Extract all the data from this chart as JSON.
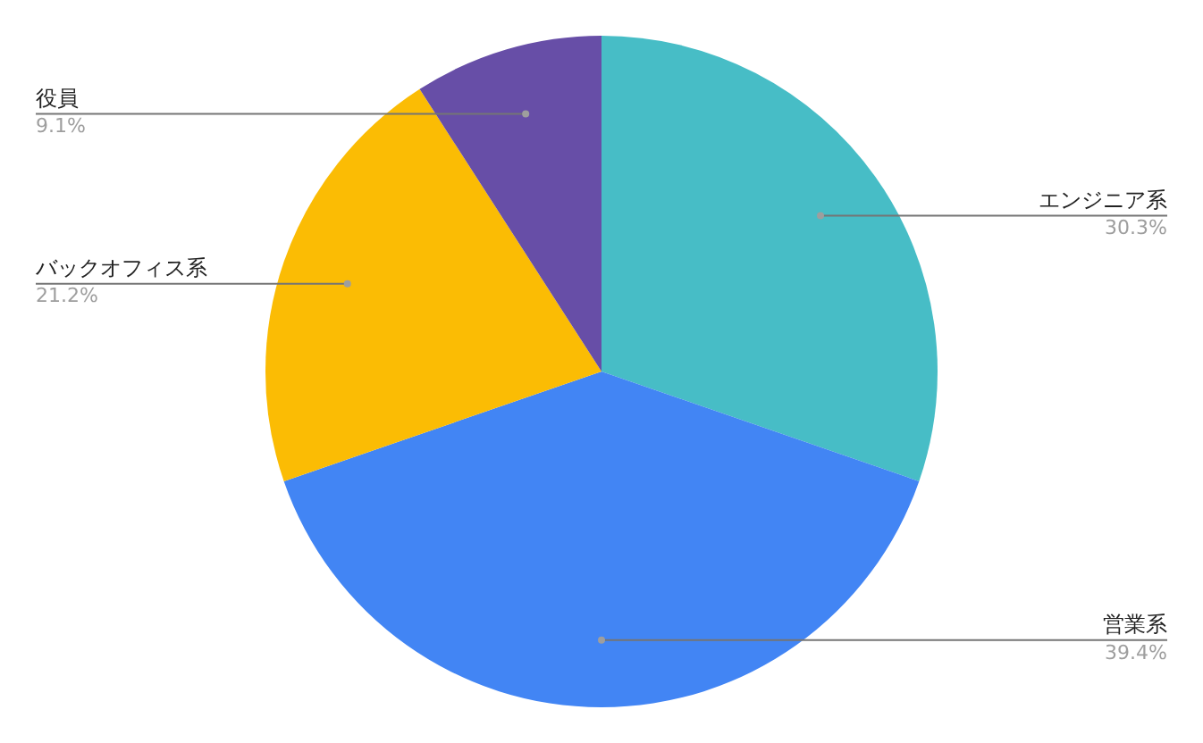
{
  "chart_data": {
    "type": "pie",
    "categories": [
      "エンジニア系",
      "営業系",
      "バックオフィス系",
      "役員"
    ],
    "values": [
      30.3,
      39.4,
      21.2,
      9.1
    ],
    "colors": [
      "#47bdc6",
      "#4285f4",
      "#fbbc04",
      "#674ea7"
    ],
    "value_labels": [
      "30.3%",
      "39.4%",
      "21.2%",
      "9.1%"
    ],
    "legend": false
  }
}
